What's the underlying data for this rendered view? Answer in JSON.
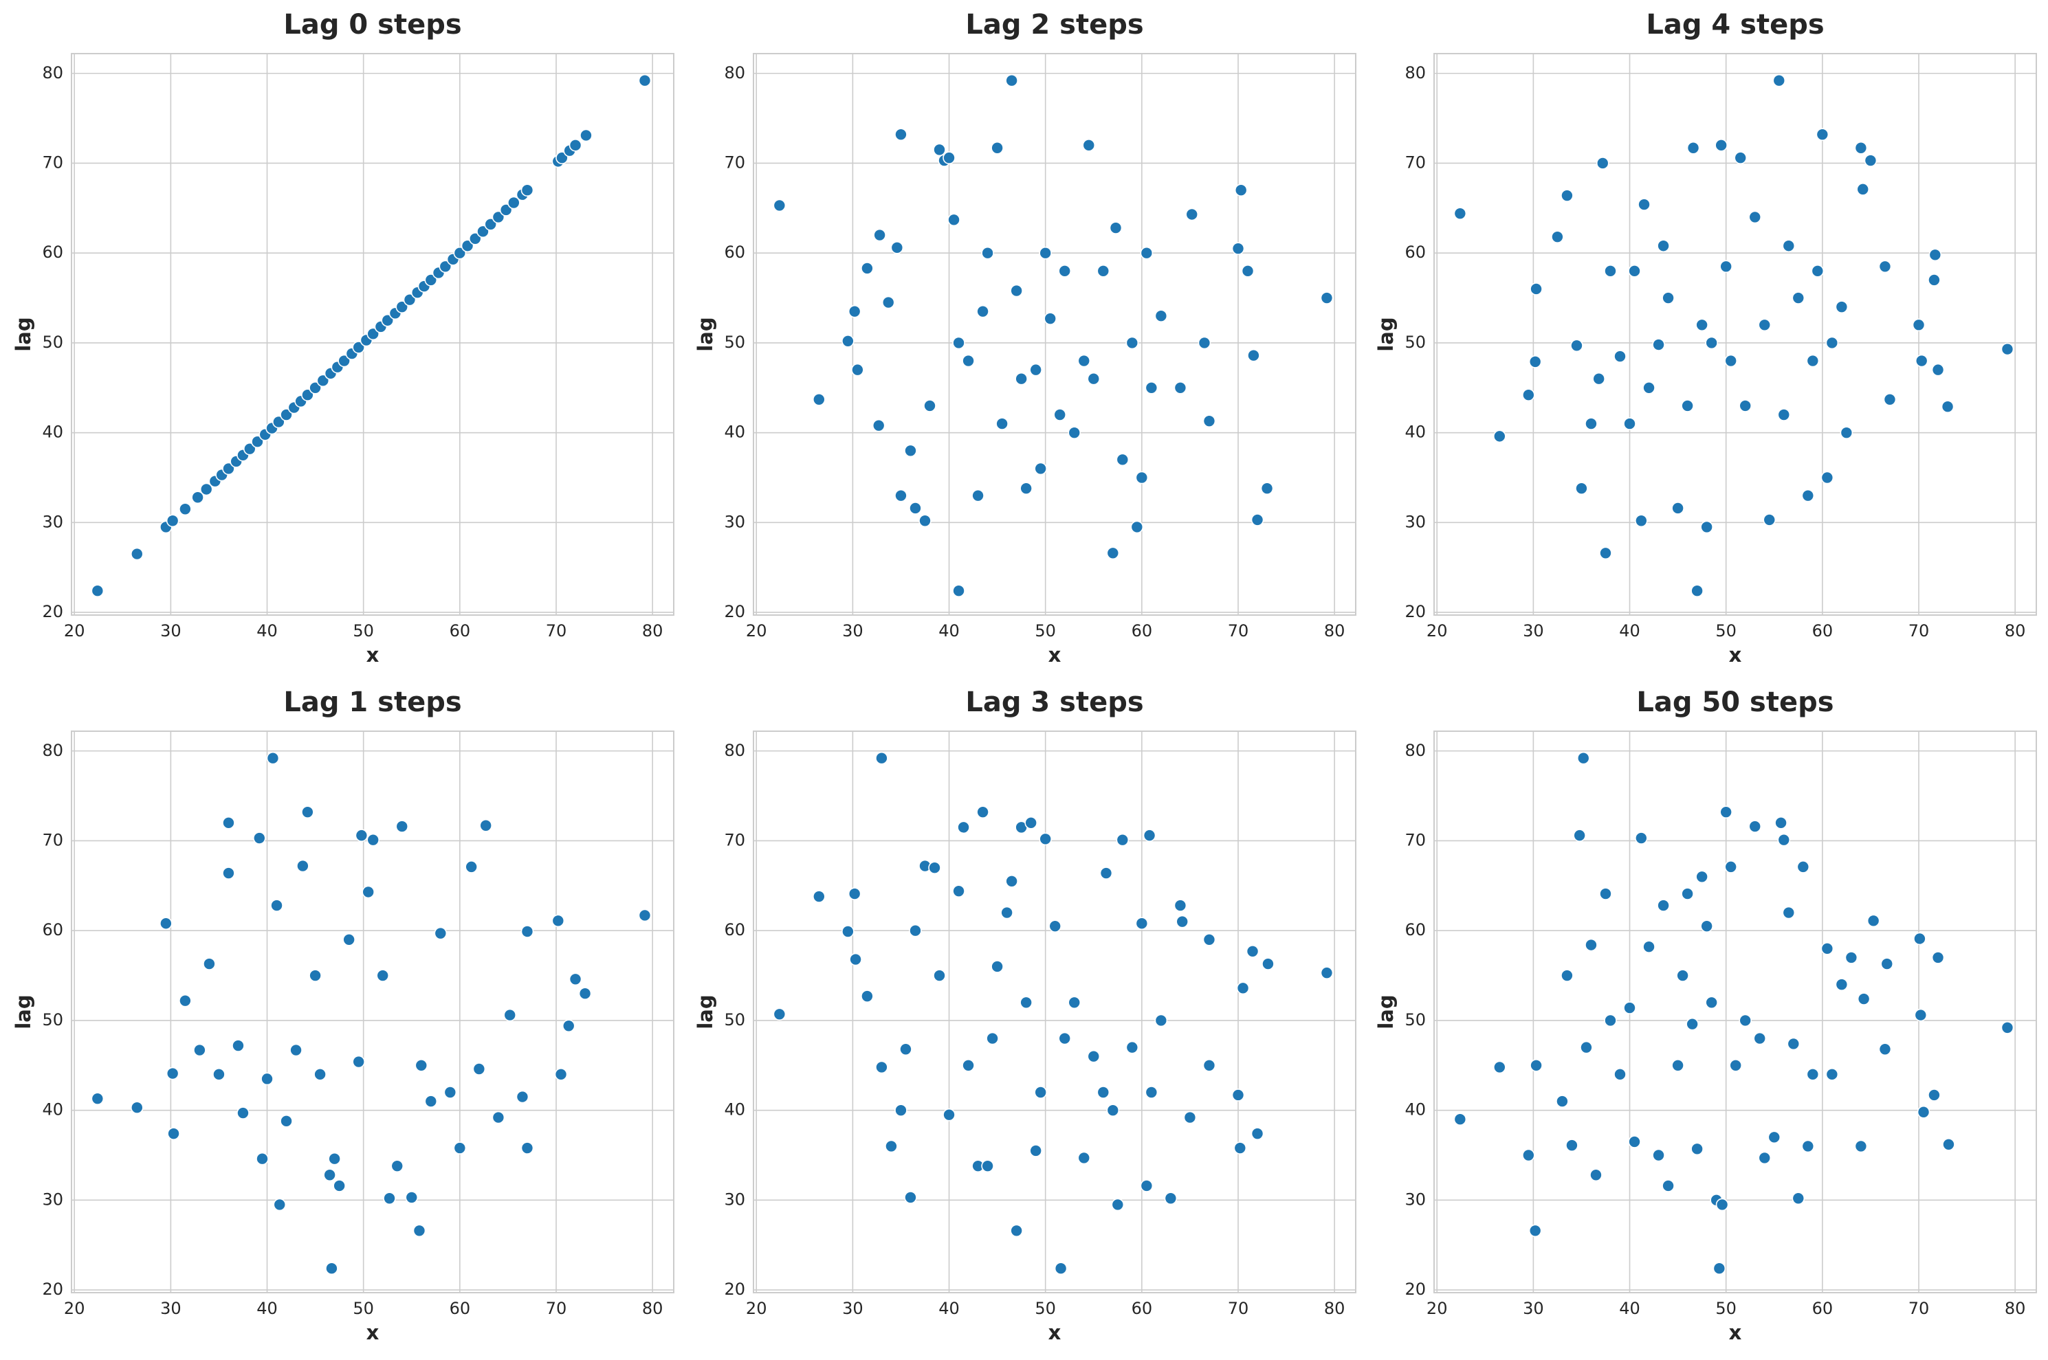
{
  "chart_data": [
    {
      "type": "scatter",
      "title": "Lag 0 steps",
      "xlabel": "x",
      "ylabel": "lag",
      "color": "#1f77b4",
      "grid": true,
      "xlim": [
        19.7,
        82.2
      ],
      "ylim": [
        19.7,
        82.2
      ],
      "xticks": [
        20,
        30,
        40,
        50,
        60,
        70,
        80
      ],
      "yticks": [
        20,
        30,
        40,
        50,
        60,
        70,
        80
      ],
      "x": [
        22.4,
        26.5,
        29.5,
        30.2,
        31.5,
        32.8,
        33.7,
        34.6,
        35.3,
        36.0,
        36.8,
        37.5,
        38.2,
        39.0,
        39.8,
        40.5,
        41.2,
        42.0,
        42.8,
        43.5,
        44.2,
        45.0,
        45.8,
        46.6,
        47.3,
        48.0,
        48.8,
        49.5,
        50.3,
        51.0,
        51.8,
        52.5,
        53.3,
        54.0,
        54.8,
        55.6,
        56.3,
        57.0,
        57.8,
        58.5,
        59.3,
        60.0,
        60.8,
        61.6,
        62.4,
        63.2,
        64.0,
        64.8,
        65.6,
        66.5,
        67.0,
        70.2,
        70.6,
        71.4,
        72.0,
        73.1,
        79.2
      ],
      "values": [
        22.4,
        26.5,
        29.5,
        30.2,
        31.5,
        32.8,
        33.7,
        34.6,
        35.3,
        36.0,
        36.8,
        37.5,
        38.2,
        39.0,
        39.8,
        40.5,
        41.2,
        42.0,
        42.8,
        43.5,
        44.2,
        45.0,
        45.8,
        46.6,
        47.3,
        48.0,
        48.8,
        49.5,
        50.3,
        51.0,
        51.8,
        52.5,
        53.3,
        54.0,
        54.8,
        55.6,
        56.3,
        57.0,
        57.8,
        58.5,
        59.3,
        60.0,
        60.8,
        61.6,
        62.4,
        63.2,
        64.0,
        64.8,
        65.6,
        66.5,
        67.0,
        70.2,
        70.6,
        71.4,
        72.0,
        73.1,
        79.2
      ]
    },
    {
      "type": "scatter",
      "title": "Lag 2 steps",
      "xlabel": "x",
      "ylabel": "lag",
      "color": "#1f77b4",
      "grid": true,
      "xlim": [
        19.7,
        82.2
      ],
      "ylim": [
        19.7,
        82.2
      ],
      "xticks": [
        20,
        30,
        40,
        50,
        60,
        70,
        80
      ],
      "yticks": [
        20,
        30,
        40,
        50,
        60,
        70,
        80
      ],
      "x": [
        22.4,
        26.5,
        29.5,
        30.2,
        30.5,
        31.5,
        32.8,
        32.7,
        33.7,
        34.6,
        35.0,
        35.0,
        36,
        36.5,
        37.5,
        38,
        39,
        39.5,
        40,
        40.5,
        41,
        41,
        42,
        43,
        43.5,
        44,
        45,
        45.5,
        46.5,
        47,
        47.5,
        48,
        49,
        49.5,
        50,
        50.5,
        51.5,
        52,
        53,
        54,
        54.5,
        55,
        56,
        57,
        57.3,
        58,
        59,
        59.5,
        60,
        60.5,
        61,
        62,
        64,
        65.2,
        66.5,
        67,
        70,
        70.3,
        71,
        71.6,
        72,
        73,
        79.2
      ],
      "values": [
        65.3,
        43.7,
        50.2,
        53.5,
        47,
        58.3,
        62,
        40.8,
        54.5,
        60.6,
        33,
        73.2,
        38,
        31.6,
        30.2,
        43,
        71.5,
        70.3,
        70.6,
        63.7,
        22.4,
        50,
        48,
        33,
        53.5,
        60,
        71.7,
        41,
        79.2,
        55.8,
        46,
        33.8,
        47,
        36,
        60,
        52.7,
        42,
        58,
        40,
        48,
        72,
        46,
        58,
        26.6,
        62.8,
        37,
        50,
        29.5,
        35,
        60,
        45,
        53,
        45,
        64.3,
        50,
        41.3,
        60.5,
        67,
        58,
        48.6,
        30.3,
        33.8,
        55
      ]
    },
    {
      "type": "scatter",
      "title": "Lag 4 steps",
      "xlabel": "x",
      "ylabel": "lag",
      "color": "#1f77b4",
      "grid": true,
      "xlim": [
        19.7,
        82.2
      ],
      "ylim": [
        19.7,
        82.2
      ],
      "xticks": [
        20,
        30,
        40,
        50,
        60,
        70,
        80
      ],
      "yticks": [
        20,
        30,
        40,
        50,
        60,
        70,
        80
      ],
      "x": [
        22.4,
        26.5,
        29.5,
        30.2,
        30.3,
        32.5,
        33.5,
        34.5,
        35,
        36,
        36.8,
        37.2,
        37.5,
        38,
        39,
        40,
        40.5,
        41.2,
        41.5,
        42,
        43,
        43.5,
        44,
        45,
        46,
        46.6,
        47,
        47.5,
        48,
        48.5,
        49.5,
        50,
        50.5,
        51.5,
        52,
        53,
        54,
        54.5,
        55.5,
        56,
        56.5,
        57.5,
        58.5,
        59,
        59.5,
        60,
        60.5,
        61,
        62,
        62.5,
        64,
        64.2,
        65,
        66.5,
        67,
        70,
        70.3,
        71.7,
        71.6,
        72,
        73,
        79.2
      ],
      "values": [
        64.4,
        39.6,
        44.2,
        47.9,
        56,
        61.8,
        66.4,
        49.7,
        33.8,
        41,
        46,
        70,
        26.6,
        58,
        48.5,
        41,
        58,
        30.2,
        65.4,
        45,
        49.8,
        60.8,
        55,
        31.6,
        43,
        71.7,
        22.4,
        52,
        29.5,
        50,
        72,
        58.5,
        48,
        70.6,
        43,
        64,
        52,
        30.3,
        79.2,
        42,
        60.8,
        55,
        33,
        48,
        58,
        73.2,
        35,
        50,
        54,
        40,
        71.7,
        67.1,
        70.3,
        58.5,
        43.7,
        52,
        48,
        59.8,
        57,
        47,
        42.9,
        49.3
      ]
    },
    {
      "type": "scatter",
      "title": "Lag 1 steps",
      "xlabel": "x",
      "ylabel": "lag",
      "color": "#1f77b4",
      "grid": true,
      "xlim": [
        19.7,
        82.2
      ],
      "ylim": [
        19.7,
        82.2
      ],
      "xticks": [
        20,
        30,
        40,
        50,
        60,
        70,
        80
      ],
      "yticks": [
        20,
        30,
        40,
        50,
        60,
        70,
        80
      ],
      "x": [
        22.4,
        26.5,
        29.5,
        30.2,
        30.3,
        31.5,
        33,
        34,
        35,
        36,
        36,
        37,
        37.5,
        39.2,
        39.5,
        40,
        40.6,
        41,
        41.3,
        42,
        43,
        43.7,
        44.2,
        45,
        45.5,
        46.5,
        46.7,
        47,
        47.5,
        48.5,
        49.5,
        49.8,
        50.5,
        51,
        52,
        52.7,
        53.5,
        54,
        55,
        55.8,
        56,
        57,
        58,
        59,
        60,
        61.2,
        62,
        62.7,
        64,
        65.2,
        66.5,
        67,
        67,
        70.2,
        70.5,
        71.3,
        72,
        73,
        79.2
      ],
      "values": [
        41.3,
        40.3,
        60.8,
        44.1,
        37.4,
        52.2,
        46.7,
        56.3,
        44,
        66.4,
        72,
        47.2,
        39.7,
        70.3,
        34.6,
        43.5,
        79.2,
        62.8,
        29.5,
        38.8,
        46.7,
        67.2,
        73.2,
        55,
        44,
        32.8,
        22.4,
        34.6,
        31.6,
        59,
        45.4,
        70.6,
        64.3,
        70.1,
        55,
        30.2,
        33.8,
        71.6,
        30.3,
        26.6,
        45,
        41,
        59.7,
        42,
        35.8,
        67.1,
        44.6,
        71.7,
        39.2,
        50.6,
        41.5,
        59.9,
        35.8,
        61.1,
        44,
        49.4,
        54.6,
        53,
        61.7
      ]
    },
    {
      "type": "scatter",
      "title": "Lag 3 steps",
      "xlabel": "x",
      "ylabel": "lag",
      "color": "#1f77b4",
      "grid": true,
      "xlim": [
        19.7,
        82.2
      ],
      "ylim": [
        19.7,
        82.2
      ],
      "xticks": [
        20,
        30,
        40,
        50,
        60,
        70,
        80
      ],
      "yticks": [
        20,
        30,
        40,
        50,
        60,
        70,
        80
      ],
      "x": [
        22.4,
        26.5,
        29.5,
        30.2,
        30.3,
        31.5,
        33,
        33,
        34,
        35,
        35.5,
        36,
        36.5,
        37.5,
        38.5,
        39,
        40,
        41,
        41.5,
        42,
        43,
        43.5,
        44,
        44.5,
        45,
        46,
        46.5,
        47,
        47.5,
        48,
        48.5,
        49,
        49.5,
        50,
        51,
        51.6,
        52,
        53,
        54,
        55,
        56,
        56.3,
        57,
        57.5,
        58,
        59,
        60,
        60.5,
        60.8,
        61,
        62,
        63,
        64,
        64.2,
        65,
        67,
        67,
        70,
        70.2,
        70.5,
        71.5,
        72,
        73.1,
        79.2
      ],
      "values": [
        50.7,
        63.8,
        59.9,
        64.1,
        56.8,
        52.7,
        79.2,
        44.8,
        36,
        40,
        46.8,
        30.3,
        60,
        67.2,
        67,
        55,
        39.5,
        64.4,
        71.5,
        45,
        33.8,
        73.2,
        33.8,
        48,
        56,
        62,
        65.5,
        26.6,
        71.5,
        52,
        72,
        35.5,
        42,
        70.2,
        60.5,
        22.4,
        48,
        52,
        34.7,
        46,
        42,
        66.4,
        40,
        29.5,
        70.1,
        47,
        60.8,
        31.6,
        70.6,
        42,
        50,
        30.2,
        62.8,
        61,
        39.2,
        59,
        45,
        41.7,
        35.8,
        53.6,
        57.7,
        37.4,
        56.3,
        55.3
      ]
    },
    {
      "type": "scatter",
      "title": "Lag 50 steps",
      "xlabel": "x",
      "ylabel": "lag",
      "color": "#1f77b4",
      "grid": true,
      "xlim": [
        19.7,
        82.2
      ],
      "ylim": [
        19.7,
        82.2
      ],
      "xticks": [
        20,
        30,
        40,
        50,
        60,
        70,
        80
      ],
      "yticks": [
        20,
        30,
        40,
        50,
        60,
        70,
        80
      ],
      "x": [
        22.4,
        26.5,
        29.5,
        30.2,
        30.3,
        33,
        33.5,
        34,
        34.8,
        35.2,
        35.5,
        36,
        36.5,
        37.5,
        38,
        39,
        40,
        40.5,
        41.2,
        42,
        43,
        43.5,
        44,
        45,
        45.5,
        46,
        46.5,
        47,
        47.5,
        48,
        48.5,
        49,
        49.3,
        49.6,
        50,
        50.5,
        51,
        52,
        53,
        53.5,
        54,
        55,
        55.7,
        56,
        56.5,
        57,
        57.5,
        58,
        58.5,
        59,
        60.5,
        61,
        62,
        63,
        64,
        64.3,
        65.3,
        66.5,
        66.7,
        70.1,
        70.2,
        70.5,
        71.6,
        72,
        73.1,
        79.2
      ],
      "values": [
        39,
        44.8,
        35,
        26.6,
        45,
        41,
        55,
        36.1,
        70.6,
        79.2,
        47,
        58.4,
        32.8,
        64.1,
        50,
        44,
        51.4,
        36.5,
        70.3,
        58.2,
        35,
        62.8,
        31.6,
        45,
        55,
        64.1,
        49.6,
        35.7,
        66,
        60.5,
        52,
        30,
        22.4,
        29.5,
        73.2,
        67.1,
        45,
        50,
        71.6,
        48,
        34.7,
        37,
        72,
        70.1,
        62,
        47.4,
        30.2,
        67.1,
        36,
        44,
        58,
        44,
        54,
        57,
        36,
        52.4,
        61.1,
        46.8,
        56.3,
        59.1,
        50.6,
        39.8,
        41.7,
        57,
        36.2,
        49.2
      ]
    }
  ]
}
